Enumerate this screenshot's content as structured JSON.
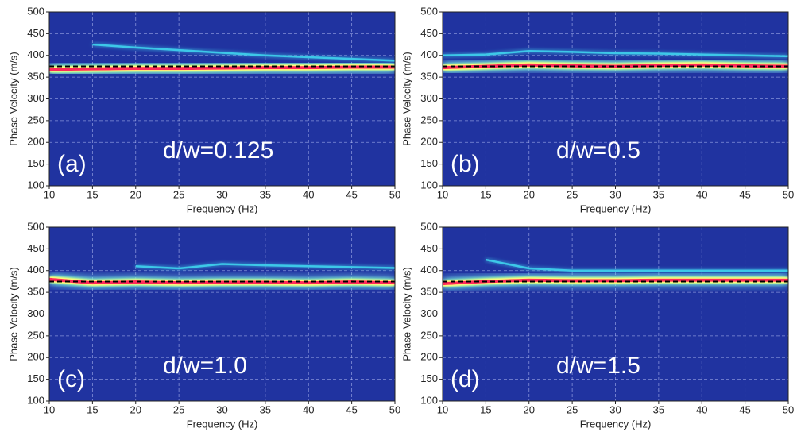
{
  "chart_data": [
    {
      "type": "dispersion",
      "panel_label": "(a)",
      "annotation": "d/w=0.125",
      "x_label": "Frequency (Hz)",
      "y_label": "Phase Velocity (m/s)",
      "background": "#2033a0",
      "grid": true,
      "xlim": [
        10,
        50
      ],
      "ylim": [
        100,
        500
      ],
      "xticks": [
        10,
        15,
        20,
        25,
        30,
        35,
        40,
        45,
        50
      ],
      "yticks": [
        100,
        150,
        200,
        250,
        300,
        350,
        400,
        450,
        500
      ],
      "x": [
        10,
        15,
        20,
        25,
        30,
        35,
        40,
        45,
        50
      ],
      "series": [
        {
          "color": "#ff2a5a",
          "values": [
            368,
            369,
            370,
            370,
            371,
            372,
            372,
            373,
            373
          ]
        },
        {
          "color": "#3cc8e8",
          "values": [
            null,
            425,
            418,
            412,
            406,
            400,
            396,
            392,
            388
          ]
        },
        {
          "color": "#000000",
          "dashed": true,
          "values": [
            375,
            375,
            375,
            375,
            375,
            375,
            375,
            375,
            375
          ]
        }
      ]
    },
    {
      "type": "dispersion",
      "panel_label": "(b)",
      "annotation": "d/w=0.5",
      "x_label": "Frequency (Hz)",
      "y_label": "Phase Velocity (m/s)",
      "background": "#2033a0",
      "grid": true,
      "xlim": [
        10,
        50
      ],
      "ylim": [
        100,
        500
      ],
      "xticks": [
        10,
        15,
        20,
        25,
        30,
        35,
        40,
        45,
        50
      ],
      "yticks": [
        100,
        150,
        200,
        250,
        300,
        350,
        400,
        450,
        500
      ],
      "x": [
        10,
        15,
        20,
        25,
        30,
        35,
        40,
        45,
        50
      ],
      "series": [
        {
          "color": "#ff2a5a",
          "values": [
            372,
            375,
            378,
            376,
            375,
            377,
            378,
            376,
            375
          ]
        },
        {
          "color": "#3cc8e8",
          "values": [
            400,
            402,
            410,
            408,
            405,
            404,
            402,
            400,
            398
          ]
        },
        {
          "color": "#000000",
          "dashed": true,
          "values": [
            375,
            375,
            375,
            375,
            375,
            375,
            375,
            375,
            375
          ]
        }
      ]
    },
    {
      "type": "dispersion",
      "panel_label": "(c)",
      "annotation": "d/w=1.0",
      "x_label": "Frequency (Hz)",
      "y_label": "Phase Velocity (m/s)",
      "background": "#2033a0",
      "grid": true,
      "xlim": [
        10,
        50
      ],
      "ylim": [
        100,
        500
      ],
      "xticks": [
        10,
        15,
        20,
        25,
        30,
        35,
        40,
        45,
        50
      ],
      "yticks": [
        100,
        150,
        200,
        250,
        300,
        350,
        400,
        450,
        500
      ],
      "x": [
        10,
        15,
        20,
        25,
        30,
        35,
        40,
        45,
        50
      ],
      "series": [
        {
          "color": "#ff2a5a",
          "values": [
            380,
            372,
            374,
            372,
            373,
            373,
            372,
            374,
            372
          ]
        },
        {
          "color": "#3cc8e8",
          "values": [
            null,
            null,
            410,
            405,
            415,
            412,
            410,
            408,
            406
          ]
        },
        {
          "color": "#000000",
          "dashed": true,
          "values": [
            375,
            375,
            375,
            375,
            375,
            375,
            375,
            375,
            375
          ]
        }
      ]
    },
    {
      "type": "dispersion",
      "panel_label": "(d)",
      "annotation": "d/w=1.5",
      "x_label": "Frequency (Hz)",
      "y_label": "Phase Velocity (m/s)",
      "background": "#2033a0",
      "grid": true,
      "xlim": [
        10,
        50
      ],
      "ylim": [
        100,
        500
      ],
      "xticks": [
        10,
        15,
        20,
        25,
        30,
        35,
        40,
        45,
        50
      ],
      "yticks": [
        100,
        150,
        200,
        250,
        300,
        350,
        400,
        450,
        500
      ],
      "x": [
        10,
        15,
        20,
        25,
        30,
        35,
        40,
        45,
        50
      ],
      "series": [
        {
          "color": "#ff2a5a",
          "values": [
            370,
            375,
            378,
            377,
            377,
            378,
            378,
            378,
            378
          ]
        },
        {
          "color": "#3cc8e8",
          "values": [
            null,
            425,
            405,
            400,
            400,
            400,
            400,
            400,
            400
          ]
        },
        {
          "color": "#000000",
          "dashed": true,
          "values": [
            375,
            375,
            375,
            375,
            375,
            375,
            375,
            375,
            375
          ]
        }
      ]
    }
  ]
}
